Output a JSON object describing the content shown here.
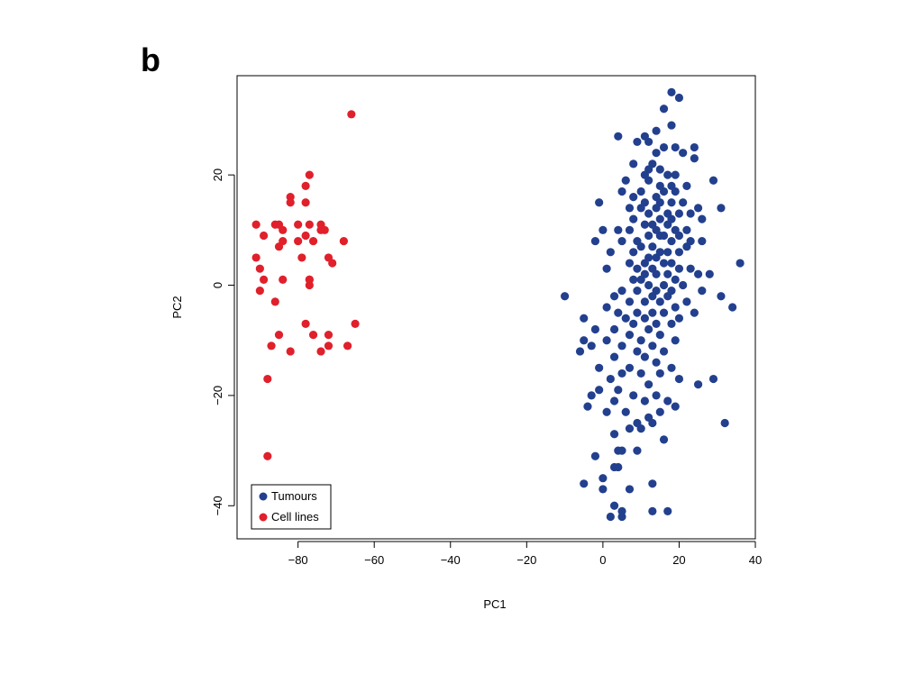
{
  "panel_label": "b",
  "chart_data": {
    "type": "scatter",
    "xlabel": "PC1",
    "ylabel": "PC2",
    "xlim": [
      -96,
      40
    ],
    "ylim": [
      -46,
      38
    ],
    "xticks": [
      -80,
      -60,
      -40,
      -20,
      0,
      20,
      40
    ],
    "yticks": [
      -40,
      -20,
      0,
      20
    ],
    "xtick_labels": [
      "−80",
      "−60",
      "−40",
      "−20",
      "0",
      "20",
      "40"
    ],
    "ytick_labels": [
      "−40",
      "−20",
      "0",
      "20"
    ],
    "grid": false,
    "legend_position": "bottom-left",
    "series": [
      {
        "name": "Tumours",
        "color": "#23408e",
        "points": [
          [
            18,
            35
          ],
          [
            20,
            34
          ],
          [
            16,
            32
          ],
          [
            18,
            29
          ],
          [
            14,
            28
          ],
          [
            4,
            27
          ],
          [
            11,
            27
          ],
          [
            12,
            26
          ],
          [
            9,
            26
          ],
          [
            16,
            25
          ],
          [
            19,
            25
          ],
          [
            14,
            24
          ],
          [
            24,
            25
          ],
          [
            21,
            24
          ],
          [
            24,
            23
          ],
          [
            13,
            22
          ],
          [
            8,
            22
          ],
          [
            12,
            21
          ],
          [
            15,
            21
          ],
          [
            17,
            20
          ],
          [
            11,
            20
          ],
          [
            19,
            20
          ],
          [
            6,
            19
          ],
          [
            12,
            19
          ],
          [
            15,
            18
          ],
          [
            18,
            18
          ],
          [
            29,
            19
          ],
          [
            22,
            18
          ],
          [
            10,
            17
          ],
          [
            5,
            17
          ],
          [
            16,
            17
          ],
          [
            19,
            17
          ],
          [
            14,
            16
          ],
          [
            8,
            16
          ],
          [
            18,
            15
          ],
          [
            15,
            15
          ],
          [
            21,
            15
          ],
          [
            11,
            15
          ],
          [
            14,
            14
          ],
          [
            7,
            14
          ],
          [
            10,
            14
          ],
          [
            25,
            14
          ],
          [
            31,
            14
          ],
          [
            -1,
            15
          ],
          [
            17,
            13
          ],
          [
            20,
            13
          ],
          [
            12,
            13
          ],
          [
            23,
            13
          ],
          [
            15,
            12
          ],
          [
            18,
            12
          ],
          [
            8,
            12
          ],
          [
            13,
            11
          ],
          [
            17,
            11
          ],
          [
            26,
            12
          ],
          [
            11,
            11
          ],
          [
            14,
            10
          ],
          [
            19,
            10
          ],
          [
            22,
            10
          ],
          [
            0,
            10
          ],
          [
            4,
            10
          ],
          [
            7,
            10
          ],
          [
            15,
            9
          ],
          [
            12,
            9
          ],
          [
            16,
            9
          ],
          [
            20,
            9
          ],
          [
            18,
            8
          ],
          [
            23,
            8
          ],
          [
            26,
            8
          ],
          [
            9,
            8
          ],
          [
            -2,
            8
          ],
          [
            5,
            8
          ],
          [
            13,
            7
          ],
          [
            10,
            7
          ],
          [
            17,
            6
          ],
          [
            20,
            6
          ],
          [
            15,
            6
          ],
          [
            8,
            6
          ],
          [
            22,
            7
          ],
          [
            2,
            6
          ],
          [
            12,
            5
          ],
          [
            14,
            5
          ],
          [
            11,
            4
          ],
          [
            16,
            4
          ],
          [
            18,
            4
          ],
          [
            7,
            4
          ],
          [
            9,
            3
          ],
          [
            13,
            3
          ],
          [
            20,
            3
          ],
          [
            23,
            3
          ],
          [
            1,
            3
          ],
          [
            36,
            4
          ],
          [
            25,
            2
          ],
          [
            11,
            2
          ],
          [
            14,
            2
          ],
          [
            17,
            2
          ],
          [
            8,
            1
          ],
          [
            10,
            1
          ],
          [
            19,
            1
          ],
          [
            28,
            2
          ],
          [
            12,
            0
          ],
          [
            16,
            0
          ],
          [
            21,
            0
          ],
          [
            5,
            -1
          ],
          [
            14,
            -1
          ],
          [
            9,
            -1
          ],
          [
            18,
            -1
          ],
          [
            26,
            -1
          ],
          [
            -10,
            -2
          ],
          [
            13,
            -2
          ],
          [
            3,
            -2
          ],
          [
            17,
            -2
          ],
          [
            22,
            -3
          ],
          [
            31,
            -2
          ],
          [
            11,
            -3
          ],
          [
            15,
            -3
          ],
          [
            7,
            -3
          ],
          [
            34,
            -4
          ],
          [
            1,
            -4
          ],
          [
            19,
            -4
          ],
          [
            9,
            -5
          ],
          [
            13,
            -5
          ],
          [
            16,
            -5
          ],
          [
            24,
            -5
          ],
          [
            4,
            -5
          ],
          [
            -5,
            -6
          ],
          [
            11,
            -6
          ],
          [
            6,
            -6
          ],
          [
            20,
            -6
          ],
          [
            14,
            -7
          ],
          [
            18,
            -7
          ],
          [
            8,
            -7
          ],
          [
            3,
            -8
          ],
          [
            12,
            -8
          ],
          [
            -2,
            -8
          ],
          [
            15,
            -9
          ],
          [
            7,
            -9
          ],
          [
            1,
            -10
          ],
          [
            10,
            -10
          ],
          [
            -5,
            -10
          ],
          [
            19,
            -10
          ],
          [
            13,
            -11
          ],
          [
            5,
            -11
          ],
          [
            -3,
            -11
          ],
          [
            9,
            -12
          ],
          [
            16,
            -12
          ],
          [
            -6,
            -12
          ],
          [
            3,
            -13
          ],
          [
            11,
            -13
          ],
          [
            14,
            -14
          ],
          [
            -1,
            -15
          ],
          [
            7,
            -15
          ],
          [
            18,
            -15
          ],
          [
            5,
            -16
          ],
          [
            10,
            -16
          ],
          [
            15,
            -16
          ],
          [
            2,
            -17
          ],
          [
            20,
            -17
          ],
          [
            29,
            -17
          ],
          [
            12,
            -18
          ],
          [
            25,
            -18
          ],
          [
            -1,
            -19
          ],
          [
            4,
            -19
          ],
          [
            8,
            -20
          ],
          [
            14,
            -20
          ],
          [
            17,
            -21
          ],
          [
            -3,
            -20
          ],
          [
            3,
            -21
          ],
          [
            11,
            -21
          ],
          [
            -4,
            -22
          ],
          [
            19,
            -22
          ],
          [
            1,
            -23
          ],
          [
            6,
            -23
          ],
          [
            15,
            -23
          ],
          [
            12,
            -24
          ],
          [
            9,
            -25
          ],
          [
            13,
            -25
          ],
          [
            7,
            -26
          ],
          [
            10,
            -26
          ],
          [
            3,
            -27
          ],
          [
            16,
            -28
          ],
          [
            4,
            -30
          ],
          [
            32,
            -25
          ],
          [
            5,
            -30
          ],
          [
            9,
            -30
          ],
          [
            -2,
            -31
          ],
          [
            3,
            -33
          ],
          [
            0,
            -35
          ],
          [
            13,
            -36
          ],
          [
            4,
            -33
          ],
          [
            -5,
            -36
          ],
          [
            0,
            -37
          ],
          [
            7,
            -37
          ],
          [
            3,
            -40
          ],
          [
            5,
            -41
          ],
          [
            13,
            -41
          ],
          [
            17,
            -41
          ],
          [
            2,
            -42
          ],
          [
            5,
            -42
          ]
        ]
      },
      {
        "name": "Cell lines",
        "color": "#e0202b",
        "points": [
          [
            -66,
            31
          ],
          [
            -77,
            20
          ],
          [
            -78,
            18
          ],
          [
            -82,
            16
          ],
          [
            -82,
            15
          ],
          [
            -78,
            15
          ],
          [
            -91,
            11
          ],
          [
            -86,
            11
          ],
          [
            -85,
            11
          ],
          [
            -80,
            11
          ],
          [
            -77,
            11
          ],
          [
            -74,
            11
          ],
          [
            -74,
            10
          ],
          [
            -73,
            10
          ],
          [
            -84,
            10
          ],
          [
            -89,
            9
          ],
          [
            -78,
            9
          ],
          [
            -80,
            8
          ],
          [
            -84,
            8
          ],
          [
            -68,
            8
          ],
          [
            -76,
            8
          ],
          [
            -85,
            7
          ],
          [
            -91,
            5
          ],
          [
            -79,
            5
          ],
          [
            -72,
            5
          ],
          [
            -71,
            4
          ],
          [
            -90,
            3
          ],
          [
            -84,
            1
          ],
          [
            -77,
            1
          ],
          [
            -77,
            0
          ],
          [
            -77,
            1
          ],
          [
            -89,
            1
          ],
          [
            -90,
            -1
          ],
          [
            -86,
            -3
          ],
          [
            -78,
            -7
          ],
          [
            -65,
            -7
          ],
          [
            -76,
            -9
          ],
          [
            -85,
            -9
          ],
          [
            -72,
            -9
          ],
          [
            -87,
            -11
          ],
          [
            -82,
            -12
          ],
          [
            -74,
            -12
          ],
          [
            -67,
            -11
          ],
          [
            -72,
            -11
          ],
          [
            -88,
            -17
          ],
          [
            -88,
            -31
          ]
        ]
      }
    ]
  }
}
